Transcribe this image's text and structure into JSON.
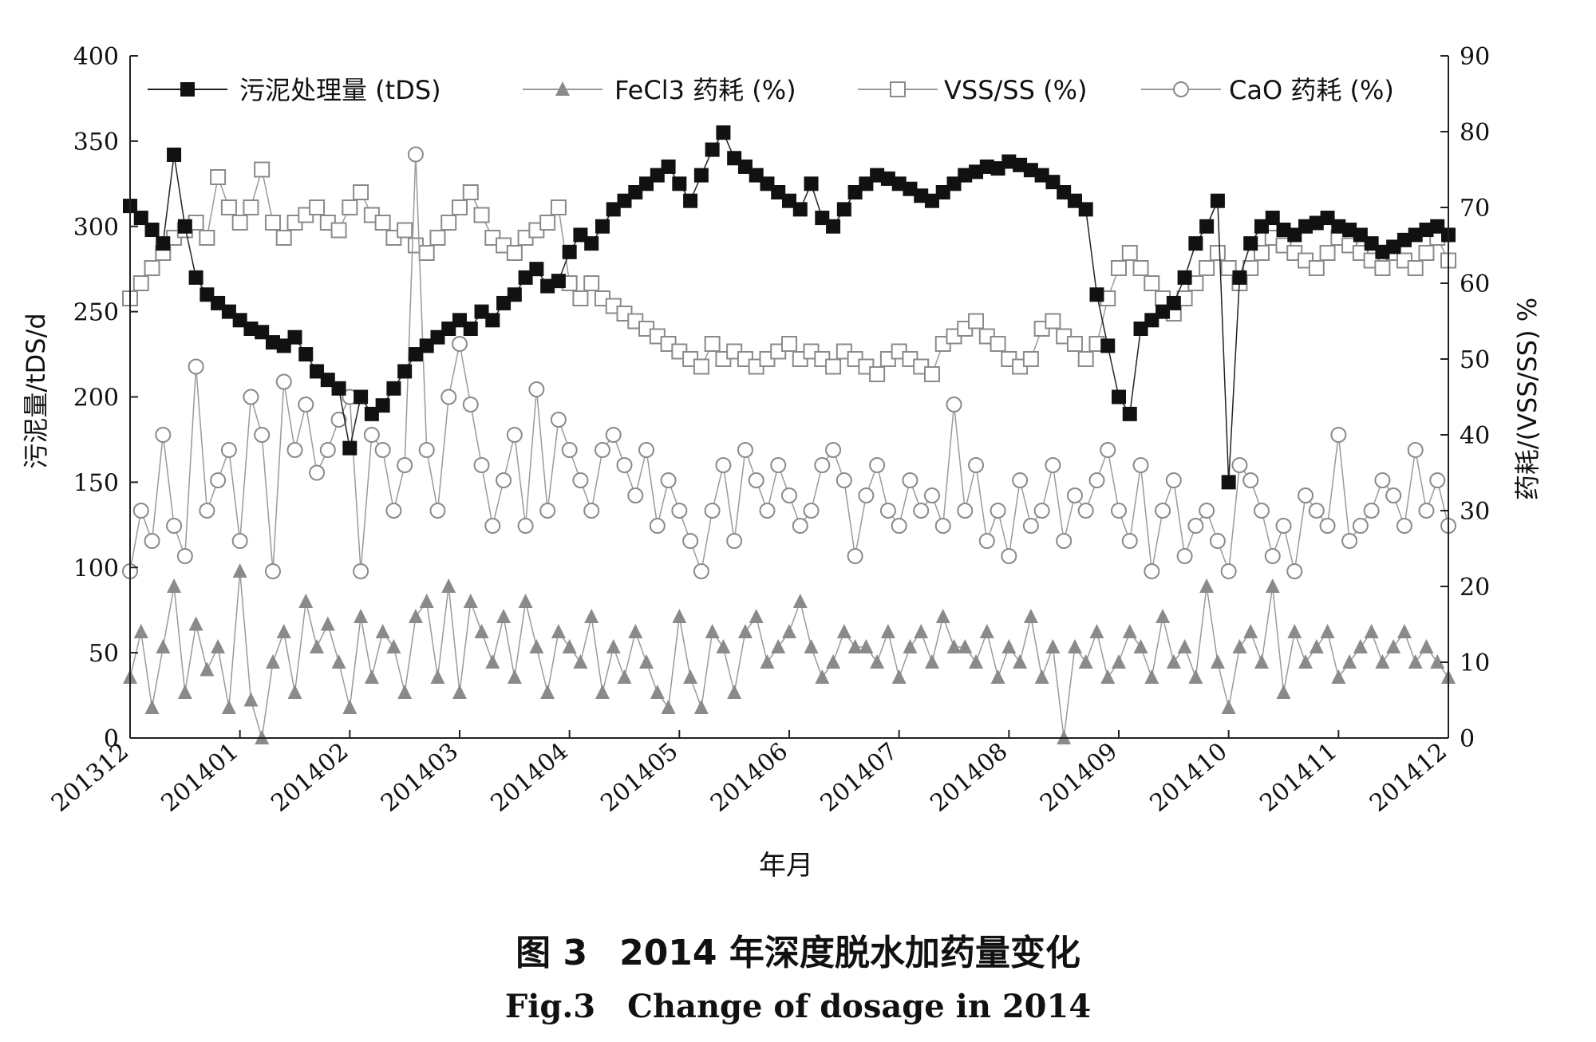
{
  "chart_data": {
    "type": "line",
    "x_categories": [
      "201312",
      "201401",
      "201402",
      "201403",
      "201404",
      "201405",
      "201406",
      "201407",
      "201408",
      "201409",
      "201410",
      "201411",
      "201412"
    ],
    "xlabel": "年月",
    "ylabel_left": "污泥量/tDS/d",
    "ylabel_right": "药耗/(VSS/SS) %",
    "ylim_left": [
      0,
      400
    ],
    "ylim_right": [
      0,
      90
    ],
    "yticks_left": [
      0,
      50,
      100,
      150,
      200,
      250,
      300,
      350,
      400
    ],
    "yticks_right": [
      0,
      10,
      20,
      30,
      40,
      50,
      60,
      70,
      80,
      90
    ],
    "grid": false,
    "legend_position": "top",
    "series": [
      {
        "name": "污泥处理量 (tDS)",
        "axis": "left",
        "marker": "filled-square",
        "color": "#111111",
        "x": [
          0.0,
          0.1,
          0.2,
          0.3,
          0.4,
          0.5,
          0.6,
          0.7,
          0.8,
          0.9,
          1.0,
          1.1,
          1.2,
          1.3,
          1.4,
          1.5,
          1.6,
          1.7,
          1.8,
          1.9,
          2.0,
          2.1,
          2.2,
          2.3,
          2.4,
          2.5,
          2.6,
          2.7,
          2.8,
          2.9,
          3.0,
          3.1,
          3.2,
          3.3,
          3.4,
          3.5,
          3.6,
          3.7,
          3.8,
          3.9,
          4.0,
          4.1,
          4.2,
          4.3,
          4.4,
          4.5,
          4.6,
          4.7,
          4.8,
          4.9,
          5.0,
          5.1,
          5.2,
          5.3,
          5.4,
          5.5,
          5.6,
          5.7,
          5.8,
          5.9,
          6.0,
          6.1,
          6.2,
          6.3,
          6.4,
          6.5,
          6.6,
          6.7,
          6.8,
          6.9,
          7.0,
          7.1,
          7.2,
          7.3,
          7.4,
          7.5,
          7.6,
          7.7,
          7.8,
          7.9,
          8.0,
          8.1,
          8.2,
          8.3,
          8.4,
          8.5,
          8.6,
          8.7,
          8.8,
          8.9,
          9.0,
          9.1,
          9.2,
          9.3,
          9.4,
          9.5,
          9.6,
          9.7,
          9.8,
          9.9,
          10.0,
          10.1,
          10.2,
          10.3,
          10.4,
          10.5,
          10.6,
          10.7,
          10.8,
          10.9,
          11.0,
          11.1,
          11.2,
          11.3,
          11.4,
          11.5,
          11.6,
          11.7,
          11.8,
          11.9,
          12.0
        ],
        "values": [
          312,
          305,
          298,
          290,
          342,
          300,
          270,
          260,
          255,
          250,
          245,
          240,
          238,
          232,
          230,
          235,
          225,
          215,
          210,
          205,
          170,
          200,
          190,
          195,
          205,
          215,
          225,
          230,
          235,
          240,
          245,
          240,
          250,
          245,
          255,
          260,
          270,
          275,
          265,
          268,
          285,
          295,
          290,
          300,
          310,
          315,
          320,
          325,
          330,
          335,
          325,
          315,
          330,
          345,
          355,
          340,
          335,
          330,
          325,
          320,
          315,
          310,
          325,
          305,
          300,
          310,
          320,
          325,
          330,
          328,
          325,
          322,
          318,
          315,
          320,
          325,
          330,
          332,
          335,
          334,
          338,
          336,
          333,
          330,
          326,
          320,
          315,
          310,
          260,
          230,
          200,
          190,
          240,
          245,
          250,
          255,
          270,
          290,
          300,
          315,
          150,
          270,
          290,
          300,
          305,
          298,
          295,
          300,
          302,
          305,
          300,
          298,
          295,
          290,
          285,
          288,
          292,
          295,
          298,
          300,
          295
        ],
        "note": "values in tDS/d"
      },
      {
        "name": "FeCl3 药耗 (%)",
        "axis": "right",
        "marker": "filled-triangle",
        "color": "#8a8a8a",
        "x": [
          0.0,
          0.1,
          0.2,
          0.3,
          0.4,
          0.5,
          0.6,
          0.7,
          0.8,
          0.9,
          1.0,
          1.1,
          1.2,
          1.3,
          1.4,
          1.5,
          1.6,
          1.7,
          1.8,
          1.9,
          2.0,
          2.1,
          2.2,
          2.3,
          2.4,
          2.5,
          2.6,
          2.7,
          2.8,
          2.9,
          3.0,
          3.1,
          3.2,
          3.3,
          3.4,
          3.5,
          3.6,
          3.7,
          3.8,
          3.9,
          4.0,
          4.1,
          4.2,
          4.3,
          4.4,
          4.5,
          4.6,
          4.7,
          4.8,
          4.9,
          5.0,
          5.1,
          5.2,
          5.3,
          5.4,
          5.5,
          5.6,
          5.7,
          5.8,
          5.9,
          6.0,
          6.1,
          6.2,
          6.3,
          6.4,
          6.5,
          6.6,
          6.7,
          6.8,
          6.9,
          7.0,
          7.1,
          7.2,
          7.3,
          7.4,
          7.5,
          7.6,
          7.7,
          7.8,
          7.9,
          8.0,
          8.1,
          8.2,
          8.3,
          8.4,
          8.5,
          8.6,
          8.7,
          8.8,
          8.9,
          9.0,
          9.1,
          9.2,
          9.3,
          9.4,
          9.5,
          9.6,
          9.7,
          9.8,
          9.9,
          10.0,
          10.1,
          10.2,
          10.3,
          10.4,
          10.5,
          10.6,
          10.7,
          10.8,
          10.9,
          11.0,
          11.1,
          11.2,
          11.3,
          11.4,
          11.5,
          11.6,
          11.7,
          11.8,
          11.9,
          12.0
        ],
        "values": [
          8,
          14,
          4,
          12,
          20,
          6,
          15,
          9,
          12,
          4,
          22,
          5,
          0,
          10,
          14,
          6,
          18,
          12,
          15,
          10,
          4,
          16,
          8,
          14,
          12,
          6,
          16,
          18,
          8,
          20,
          6,
          18,
          14,
          10,
          16,
          8,
          18,
          12,
          6,
          14,
          12,
          10,
          16,
          6,
          12,
          8,
          14,
          10,
          6,
          4,
          16,
          8,
          4,
          14,
          12,
          6,
          14,
          16,
          10,
          12,
          14,
          18,
          12,
          8,
          10,
          14,
          12,
          12,
          10,
          14,
          8,
          12,
          14,
          10,
          16,
          12,
          12,
          10,
          14,
          8,
          12,
          10,
          16,
          8,
          12,
          0,
          12,
          10,
          14,
          8,
          10,
          14,
          12,
          8,
          16,
          10,
          12,
          8,
          20,
          10,
          4,
          12,
          14,
          10,
          20,
          6,
          14,
          10,
          12,
          14,
          8,
          10,
          12,
          14,
          10,
          12,
          14,
          10,
          12,
          10,
          8
        ],
        "note": "values in %"
      },
      {
        "name": "VSS/SS (%)",
        "axis": "right",
        "marker": "open-square",
        "color": "#8a8a8a",
        "x": [
          0.0,
          0.1,
          0.2,
          0.3,
          0.4,
          0.5,
          0.6,
          0.7,
          0.8,
          0.9,
          1.0,
          1.1,
          1.2,
          1.3,
          1.4,
          1.5,
          1.6,
          1.7,
          1.8,
          1.9,
          2.0,
          2.1,
          2.2,
          2.3,
          2.4,
          2.5,
          2.6,
          2.7,
          2.8,
          2.9,
          3.0,
          3.1,
          3.2,
          3.3,
          3.4,
          3.5,
          3.6,
          3.7,
          3.8,
          3.9,
          4.0,
          4.1,
          4.2,
          4.3,
          4.4,
          4.5,
          4.6,
          4.7,
          4.8,
          4.9,
          5.0,
          5.1,
          5.2,
          5.3,
          5.4,
          5.5,
          5.6,
          5.7,
          5.8,
          5.9,
          6.0,
          6.1,
          6.2,
          6.3,
          6.4,
          6.5,
          6.6,
          6.7,
          6.8,
          6.9,
          7.0,
          7.1,
          7.2,
          7.3,
          7.4,
          7.5,
          7.6,
          7.7,
          7.8,
          7.9,
          8.0,
          8.1,
          8.2,
          8.3,
          8.4,
          8.5,
          8.6,
          8.7,
          8.8,
          8.9,
          9.0,
          9.1,
          9.2,
          9.3,
          9.4,
          9.5,
          9.6,
          9.7,
          9.8,
          9.9,
          10.0,
          10.1,
          10.2,
          10.3,
          10.4,
          10.5,
          10.6,
          10.7,
          10.8,
          10.9,
          11.0,
          11.1,
          11.2,
          11.3,
          11.4,
          11.5,
          11.6,
          11.7,
          11.8,
          11.9,
          12.0
        ],
        "values": [
          58,
          60,
          62,
          64,
          66,
          67,
          68,
          66,
          74,
          70,
          68,
          70,
          75,
          68,
          66,
          68,
          69,
          70,
          68,
          67,
          70,
          72,
          69,
          68,
          66,
          67,
          65,
          64,
          66,
          68,
          70,
          72,
          69,
          66,
          65,
          64,
          66,
          67,
          68,
          70,
          60,
          58,
          60,
          58,
          57,
          56,
          55,
          54,
          53,
          52,
          51,
          50,
          49,
          52,
          50,
          51,
          50,
          49,
          50,
          51,
          52,
          50,
          51,
          50,
          49,
          51,
          50,
          49,
          48,
          50,
          51,
          50,
          49,
          48,
          52,
          53,
          54,
          55,
          53,
          52,
          50,
          49,
          50,
          54,
          55,
          53,
          52,
          50,
          52,
          58,
          62,
          64,
          62,
          60,
          58,
          56,
          58,
          60,
          62,
          64,
          62,
          60,
          62,
          64,
          66,
          65,
          64,
          63,
          62,
          64,
          66,
          65,
          64,
          63,
          62,
          64,
          63,
          62,
          64,
          66,
          63
        ],
        "note": "values in %"
      },
      {
        "name": "CaO 药耗 (%)",
        "axis": "right",
        "marker": "open-circle",
        "color": "#8a8a8a",
        "x": [
          0.0,
          0.1,
          0.2,
          0.3,
          0.4,
          0.5,
          0.6,
          0.7,
          0.8,
          0.9,
          1.0,
          1.1,
          1.2,
          1.3,
          1.4,
          1.5,
          1.6,
          1.7,
          1.8,
          1.9,
          2.0,
          2.1,
          2.2,
          2.3,
          2.4,
          2.5,
          2.6,
          2.7,
          2.8,
          2.9,
          3.0,
          3.1,
          3.2,
          3.3,
          3.4,
          3.5,
          3.6,
          3.7,
          3.8,
          3.9,
          4.0,
          4.1,
          4.2,
          4.3,
          4.4,
          4.5,
          4.6,
          4.7,
          4.8,
          4.9,
          5.0,
          5.1,
          5.2,
          5.3,
          5.4,
          5.5,
          5.6,
          5.7,
          5.8,
          5.9,
          6.0,
          6.1,
          6.2,
          6.3,
          6.4,
          6.5,
          6.6,
          6.7,
          6.8,
          6.9,
          7.0,
          7.1,
          7.2,
          7.3,
          7.4,
          7.5,
          7.6,
          7.7,
          7.8,
          7.9,
          8.0,
          8.1,
          8.2,
          8.3,
          8.4,
          8.5,
          8.6,
          8.7,
          8.8,
          8.9,
          9.0,
          9.1,
          9.2,
          9.3,
          9.4,
          9.5,
          9.6,
          9.7,
          9.8,
          9.9,
          10.0,
          10.1,
          10.2,
          10.3,
          10.4,
          10.5,
          10.6,
          10.7,
          10.8,
          10.9,
          11.0,
          11.1,
          11.2,
          11.3,
          11.4,
          11.5,
          11.6,
          11.7,
          11.8,
          11.9,
          12.0
        ],
        "values": [
          22,
          30,
          26,
          40,
          28,
          24,
          49,
          30,
          34,
          38,
          26,
          45,
          40,
          22,
          47,
          38,
          44,
          35,
          38,
          42,
          45,
          22,
          40,
          38,
          30,
          36,
          77,
          38,
          30,
          45,
          52,
          44,
          36,
          28,
          34,
          40,
          28,
          46,
          30,
          42,
          38,
          34,
          30,
          38,
          40,
          36,
          32,
          38,
          28,
          34,
          30,
          26,
          22,
          30,
          36,
          26,
          38,
          34,
          30,
          36,
          32,
          28,
          30,
          36,
          38,
          34,
          24,
          32,
          36,
          30,
          28,
          34,
          30,
          32,
          28,
          44,
          30,
          36,
          26,
          30,
          24,
          34,
          28,
          30,
          36,
          26,
          32,
          30,
          34,
          38,
          30,
          26,
          36,
          22,
          30,
          34,
          24,
          28,
          30,
          26,
          22,
          36,
          34,
          30,
          24,
          28,
          22,
          32,
          30,
          28,
          40,
          26,
          28,
          30,
          34,
          32,
          28,
          38,
          30,
          34,
          28
        ],
        "note": "values in %"
      }
    ]
  },
  "caption": {
    "cn_label": "图 3",
    "cn_text": "2014 年深度脱水加药量变化",
    "en_label": "Fig.3",
    "en_text": "Change of dosage in 2014"
  }
}
